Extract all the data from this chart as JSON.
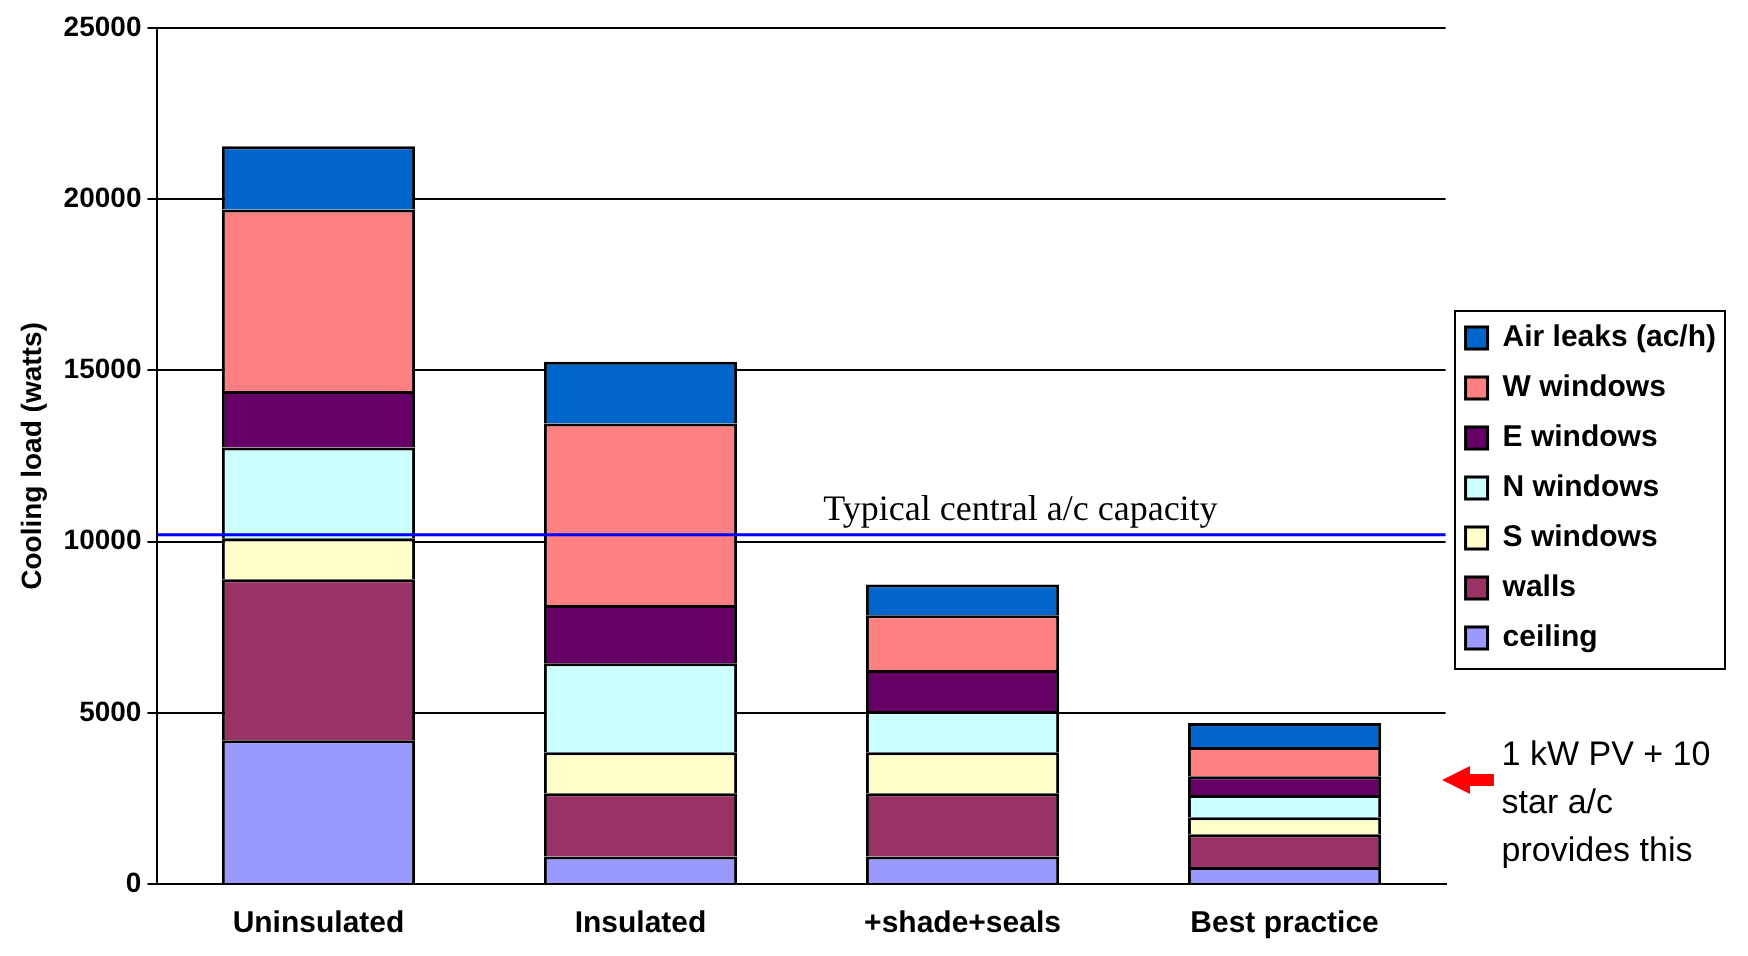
{
  "chart_data": {
    "type": "bar",
    "stacked": true,
    "ylabel": "Cooling load (watts)",
    "categories": [
      "Uninsulated",
      "Insulated",
      "+shade+seals",
      "Best practice"
    ],
    "series": [
      {
        "name": "ceiling",
        "color": "#9999ff",
        "values": [
          4200,
          800,
          800,
          500
        ]
      },
      {
        "name": "walls",
        "color": "#993366",
        "values": [
          4700,
          1850,
          1850,
          950
        ]
      },
      {
        "name": "S windows",
        "color": "#ffffcc",
        "values": [
          1200,
          1200,
          1200,
          500
        ]
      },
      {
        "name": "N windows",
        "color": "#ccffff",
        "values": [
          2650,
          2600,
          1200,
          650
        ]
      },
      {
        "name": "E windows",
        "color": "#660066",
        "values": [
          1650,
          1700,
          1200,
          550
        ]
      },
      {
        "name": "W windows",
        "color": "#ff8080",
        "values": [
          5300,
          5300,
          1600,
          850
        ]
      },
      {
        "name": "Air leaks (ac/h)",
        "color": "#0066cc",
        "values": [
          1850,
          1800,
          900,
          700
        ]
      }
    ],
    "ylim": [
      0,
      25000
    ],
    "yticks": [
      0,
      5000,
      10000,
      15000,
      20000,
      25000
    ],
    "grid": "y",
    "legend": "right",
    "ref_lines": [
      {
        "axis": "y",
        "value": 10200,
        "label": "Typical central a/c capacity",
        "color": "#0000ff"
      }
    ],
    "annotations": [
      "1 kW PV + 10 star a/c provides this"
    ]
  }
}
